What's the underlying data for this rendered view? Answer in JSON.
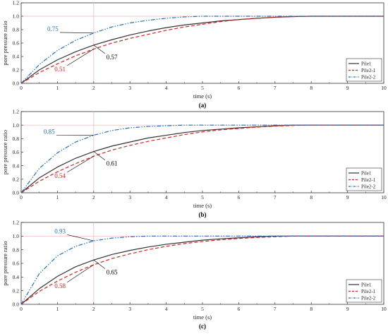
{
  "chart_data": [
    {
      "type": "line",
      "panel_label": "(a)",
      "xlabel": "time (s)",
      "ylabel": "pore pressure ratio",
      "xlim": [
        0,
        10
      ],
      "ylim": [
        0,
        1.2
      ],
      "xticks": [
        "0",
        "1",
        "2",
        "3",
        "4",
        "5",
        "6",
        "7",
        "8",
        "9",
        "10"
      ],
      "yticks": [
        "0.0",
        "0.2",
        "0.4",
        "0.6",
        "0.8",
        "1.0",
        "1.2"
      ],
      "legend_position": "bottom-right",
      "reference_lines": {
        "x": 2,
        "y": 1.0
      },
      "series": [
        {
          "name": "Pile1",
          "color": "#333333",
          "dash": "solid",
          "x": [
            0,
            0.5,
            1,
            1.5,
            2,
            2.5,
            3,
            3.5,
            4,
            4.5,
            5,
            5.5,
            6,
            6.5,
            7,
            7.5,
            8,
            8.5,
            9,
            9.5,
            10
          ],
          "y": [
            0,
            0.2,
            0.35,
            0.47,
            0.57,
            0.65,
            0.72,
            0.78,
            0.83,
            0.87,
            0.9,
            0.93,
            0.95,
            0.97,
            0.985,
            0.995,
            1.0,
            1.0,
            1.0,
            1.0,
            1.0
          ]
        },
        {
          "name": "Pile2-1",
          "color": "#e02020",
          "dash": "dashed",
          "x": [
            0,
            0.5,
            1,
            1.5,
            2,
            2.5,
            3,
            3.5,
            4,
            4.5,
            5,
            5.5,
            6,
            6.5,
            7,
            7.5,
            8,
            8.5,
            9,
            9.5,
            10
          ],
          "y": [
            0,
            0.16,
            0.29,
            0.41,
            0.51,
            0.6,
            0.67,
            0.73,
            0.79,
            0.84,
            0.88,
            0.92,
            0.95,
            0.97,
            0.985,
            0.995,
            1.0,
            1.0,
            1.0,
            1.0,
            1.0
          ]
        },
        {
          "name": "Pile2-2",
          "color": "#1f6fc5",
          "dash": "dashdotdot",
          "x": [
            0,
            0.5,
            1,
            1.5,
            2,
            2.5,
            3,
            3.5,
            4,
            4.5,
            5,
            5.5,
            6,
            6.5,
            7,
            7.5,
            8,
            8.5,
            9,
            9.5,
            10
          ],
          "y": [
            0,
            0.28,
            0.49,
            0.64,
            0.75,
            0.84,
            0.9,
            0.94,
            0.97,
            0.99,
            1.0,
            1.0,
            1.0,
            1.0,
            1.0,
            1.0,
            1.0,
            1.0,
            1.0,
            1.0,
            1.0
          ]
        }
      ],
      "annotations": [
        {
          "text": "0.75",
          "color": "#1f6fc5",
          "x": 0.72,
          "y": 0.78,
          "point": [
            2,
            0.75
          ]
        },
        {
          "text": "0.57",
          "color": "#000000",
          "x": 2.35,
          "y": 0.36,
          "point": [
            2,
            0.57
          ]
        },
        {
          "text": "0.51",
          "color": "#e02020",
          "x": 0.92,
          "y": 0.18,
          "point": [
            2,
            0.51
          ]
        }
      ]
    },
    {
      "type": "line",
      "panel_label": "(b)",
      "xlabel": "time (s)",
      "ylabel": "pore pressure ratio",
      "xlim": [
        0,
        10
      ],
      "ylim": [
        0,
        1.2
      ],
      "xticks": [
        "0",
        "1",
        "2",
        "3",
        "4",
        "5",
        "6",
        "7",
        "8",
        "9",
        "10"
      ],
      "yticks": [
        "0.0",
        "0.2",
        "0.4",
        "0.6",
        "0.8",
        "1.0",
        "1.2"
      ],
      "legend_position": "bottom-right",
      "reference_lines": {
        "x": 2,
        "y": 1.0
      },
      "series": [
        {
          "name": "Pile1",
          "color": "#333333",
          "dash": "solid",
          "x": [
            0,
            0.5,
            1,
            1.5,
            2,
            2.5,
            3,
            3.5,
            4,
            4.5,
            5,
            5.5,
            6,
            6.5,
            7,
            7.5,
            8,
            8.5,
            9,
            9.5,
            10
          ],
          "y": [
            0,
            0.22,
            0.38,
            0.51,
            0.61,
            0.69,
            0.75,
            0.81,
            0.85,
            0.89,
            0.92,
            0.94,
            0.96,
            0.975,
            0.99,
            1.0,
            1.0,
            1.0,
            1.0,
            1.0,
            1.0
          ]
        },
        {
          "name": "Pile2-1",
          "color": "#e02020",
          "dash": "dashed",
          "x": [
            0,
            0.5,
            1,
            1.5,
            2,
            2.5,
            3,
            3.5,
            4,
            4.5,
            5,
            5.5,
            6,
            6.5,
            7,
            7.5,
            8,
            8.5,
            9,
            9.5,
            10
          ],
          "y": [
            0,
            0.17,
            0.31,
            0.43,
            0.54,
            0.63,
            0.7,
            0.76,
            0.81,
            0.86,
            0.9,
            0.93,
            0.95,
            0.97,
            0.985,
            0.995,
            1.0,
            1.0,
            1.0,
            1.0,
            1.0
          ]
        },
        {
          "name": "Pile2-2",
          "color": "#1f6fc5",
          "dash": "dashdotdot",
          "x": [
            0,
            0.5,
            1,
            1.5,
            2,
            2.5,
            3,
            3.5,
            4,
            4.5,
            5,
            5.5,
            6,
            6.5,
            7,
            7.5,
            8,
            8.5,
            9,
            9.5,
            10
          ],
          "y": [
            0,
            0.36,
            0.59,
            0.75,
            0.85,
            0.92,
            0.96,
            0.98,
            0.99,
            1.0,
            1.0,
            1.0,
            1.0,
            1.0,
            1.0,
            1.0,
            1.0,
            1.0,
            1.0,
            1.0,
            1.0
          ]
        }
      ],
      "annotations": [
        {
          "text": "0.85",
          "color": "#1f6fc5",
          "x": 0.62,
          "y": 0.87,
          "point": [
            2,
            0.85
          ]
        },
        {
          "text": "0.61",
          "color": "#000000",
          "x": 2.35,
          "y": 0.4,
          "point": [
            2,
            0.61
          ]
        },
        {
          "text": "0.54",
          "color": "#e02020",
          "x": 0.92,
          "y": 0.22,
          "point": [
            2,
            0.54
          ]
        }
      ]
    },
    {
      "type": "line",
      "panel_label": "(c)",
      "xlabel": "time (s)",
      "ylabel": "pore pressure ratio",
      "xlim": [
        0,
        10
      ],
      "ylim": [
        0,
        1.2
      ],
      "xticks": [
        "0",
        "1",
        "2",
        "3",
        "4",
        "5",
        "6",
        "7",
        "8",
        "9",
        "10"
      ],
      "yticks": [
        "0.0",
        "0.2",
        "0.4",
        "0.6",
        "0.8",
        "1.0",
        "1.2"
      ],
      "legend_position": "bottom-right",
      "reference_lines": {
        "x": 2,
        "y": 1.0
      },
      "series": [
        {
          "name": "Pile1",
          "color": "#333333",
          "dash": "solid",
          "x": [
            0,
            0.5,
            1,
            1.5,
            2,
            2.5,
            3,
            3.5,
            4,
            4.5,
            5,
            5.5,
            6,
            6.5,
            7,
            7.5,
            8,
            8.5,
            9,
            9.5,
            10
          ],
          "y": [
            0,
            0.23,
            0.41,
            0.55,
            0.65,
            0.73,
            0.79,
            0.84,
            0.88,
            0.91,
            0.94,
            0.96,
            0.975,
            0.99,
            1.0,
            1.0,
            1.0,
            1.0,
            1.0,
            1.0,
            1.0
          ]
        },
        {
          "name": "Pile2-1",
          "color": "#e02020",
          "dash": "dashed",
          "x": [
            0,
            0.5,
            1,
            1.5,
            2,
            2.5,
            3,
            3.5,
            4,
            4.5,
            5,
            5.5,
            6,
            6.5,
            7,
            7.5,
            8,
            8.5,
            9,
            9.5,
            10
          ],
          "y": [
            0,
            0.19,
            0.34,
            0.47,
            0.58,
            0.67,
            0.74,
            0.8,
            0.85,
            0.89,
            0.92,
            0.945,
            0.965,
            0.98,
            0.99,
            1.0,
            1.0,
            1.0,
            1.0,
            1.0,
            1.0
          ]
        },
        {
          "name": "Pile2-2",
          "color": "#1f6fc5",
          "dash": "dashdotdot",
          "x": [
            0,
            0.5,
            1,
            1.5,
            2,
            2.5,
            3,
            3.5,
            4,
            4.5,
            5,
            5.5,
            6,
            6.5,
            7,
            7.5,
            8,
            8.5,
            9,
            9.5,
            10
          ],
          "y": [
            0,
            0.45,
            0.71,
            0.85,
            0.93,
            0.97,
            0.99,
            1.0,
            1.0,
            1.0,
            1.0,
            1.0,
            1.0,
            1.0,
            1.0,
            1.0,
            1.0,
            1.0,
            1.0,
            1.0,
            1.0
          ]
        }
      ],
      "annotations": [
        {
          "text": "0.93",
          "color": "#1f6fc5",
          "x": 0.92,
          "y": 1.04,
          "point": [
            2,
            0.93
          ]
        },
        {
          "text": "0.65",
          "color": "#000000",
          "x": 2.35,
          "y": 0.44,
          "point": [
            2,
            0.65
          ]
        },
        {
          "text": "0.58",
          "color": "#e02020",
          "x": 0.92,
          "y": 0.24,
          "point": [
            2,
            0.58
          ]
        }
      ]
    }
  ]
}
